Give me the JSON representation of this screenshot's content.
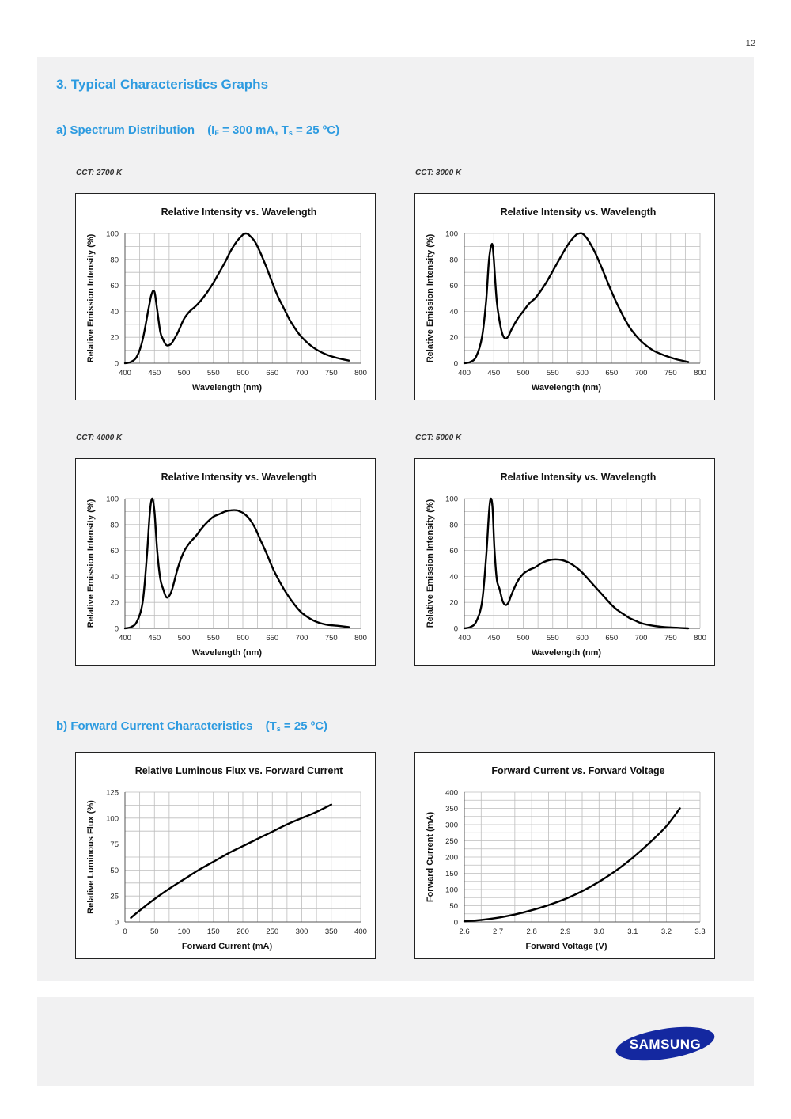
{
  "page_number": "12",
  "section": {
    "title": "3.  Typical Characteristics Graphs",
    "sub_a": {
      "label": "a)  Spectrum Distribution",
      "cond_a": "(I",
      "cond_a_sub": "F",
      "cond_b": " = 300 mA, T",
      "cond_b_sub": "s",
      "cond_c": " = 25 ºC)"
    },
    "sub_b": {
      "label": "b)  Forward Current Characteristics",
      "cond_a": "(T",
      "cond_a_sub": "s",
      "cond_b": " = 25 ºC)"
    }
  },
  "cct_labels": [
    "CCT: 2700 K",
    "CCT: 3000 K",
    "CCT: 4000 K",
    "CCT: 5000 K"
  ],
  "brand": {
    "logo_text": "SAMSUNG",
    "logo_color": "#1428a0"
  },
  "colors": {
    "accent": "#2d9be0",
    "grid": "#bdbdbd",
    "line": "#000000"
  },
  "chart_data": [
    {
      "type": "line",
      "title": "Relative Intensity vs. Wavelength",
      "xlabel": "Wavelength (nm)",
      "ylabel": "Relative Emission Intensity (%)",
      "xlim": [
        400,
        800
      ],
      "ylim": [
        0,
        100
      ],
      "xticks": [
        400,
        450,
        500,
        550,
        600,
        650,
        700,
        750,
        800
      ],
      "yticks": [
        0,
        20,
        40,
        60,
        80,
        100
      ],
      "x": [
        400,
        410,
        420,
        430,
        440,
        445,
        450,
        455,
        460,
        465,
        470,
        475,
        480,
        490,
        500,
        510,
        520,
        530,
        540,
        550,
        560,
        570,
        580,
        590,
        600,
        605,
        610,
        620,
        630,
        640,
        650,
        660,
        670,
        680,
        690,
        700,
        720,
        740,
        760,
        780
      ],
      "y": [
        0,
        1,
        5,
        18,
        42,
        53,
        55,
        40,
        24,
        18,
        14,
        14,
        16,
        24,
        34,
        40,
        44,
        49,
        55,
        62,
        70,
        78,
        87,
        94,
        99,
        100,
        99,
        94,
        85,
        74,
        62,
        51,
        42,
        33,
        26,
        20,
        12,
        7,
        4,
        2
      ]
    },
    {
      "type": "line",
      "title": "Relative Intensity vs. Wavelength",
      "xlabel": "Wavelength (nm)",
      "ylabel": "Relative Emission Intensity (%)",
      "xlim": [
        400,
        800
      ],
      "ylim": [
        0,
        100
      ],
      "xticks": [
        400,
        450,
        500,
        550,
        600,
        650,
        700,
        750,
        800
      ],
      "yticks": [
        0,
        20,
        40,
        60,
        80,
        100
      ],
      "x": [
        400,
        410,
        420,
        430,
        437,
        442,
        447,
        450,
        455,
        460,
        465,
        470,
        475,
        480,
        490,
        500,
        510,
        520,
        530,
        540,
        550,
        560,
        570,
        580,
        590,
        595,
        600,
        605,
        610,
        620,
        630,
        640,
        650,
        660,
        670,
        680,
        690,
        700,
        720,
        740,
        760,
        780
      ],
      "y": [
        0,
        1,
        5,
        20,
        48,
        80,
        92,
        80,
        48,
        32,
        22,
        19,
        21,
        26,
        34,
        40,
        46,
        50,
        56,
        63,
        71,
        79,
        87,
        94,
        99,
        100,
        100,
        98,
        95,
        87,
        77,
        66,
        55,
        45,
        36,
        28,
        22,
        17,
        10,
        6,
        3,
        1
      ]
    },
    {
      "type": "line",
      "title": "Relative Intensity vs. Wavelength",
      "xlabel": "Wavelength (nm)",
      "ylabel": "Relative Emission Intensity (%)",
      "xlim": [
        400,
        800
      ],
      "ylim": [
        0,
        100
      ],
      "xticks": [
        400,
        450,
        500,
        550,
        600,
        650,
        700,
        750,
        800
      ],
      "yticks": [
        0,
        20,
        40,
        60,
        80,
        100
      ],
      "x": [
        400,
        410,
        420,
        430,
        437,
        442,
        446,
        450,
        455,
        460,
        465,
        470,
        475,
        480,
        490,
        500,
        510,
        520,
        530,
        540,
        550,
        560,
        570,
        580,
        590,
        595,
        600,
        610,
        620,
        630,
        640,
        650,
        660,
        670,
        680,
        690,
        700,
        720,
        740,
        760,
        780
      ],
      "y": [
        0,
        1,
        5,
        20,
        55,
        88,
        100,
        90,
        58,
        38,
        30,
        24,
        25,
        30,
        47,
        59,
        66,
        71,
        77,
        82,
        86,
        88,
        90,
        91,
        91,
        90,
        89,
        85,
        78,
        68,
        58,
        47,
        38,
        30,
        23,
        17,
        12,
        6,
        3,
        2,
        1
      ]
    },
    {
      "type": "line",
      "title": "Relative Intensity vs. Wavelength",
      "xlabel": "Wavelength (nm)",
      "ylabel": "Relative Emission Intensity (%)",
      "xlim": [
        400,
        800
      ],
      "ylim": [
        0,
        100
      ],
      "xticks": [
        400,
        450,
        500,
        550,
        600,
        650,
        700,
        750,
        800
      ],
      "yticks": [
        0,
        20,
        40,
        60,
        80,
        100
      ],
      "x": [
        400,
        410,
        420,
        430,
        437,
        442,
        445,
        448,
        451,
        455,
        460,
        465,
        470,
        475,
        480,
        490,
        500,
        510,
        520,
        530,
        540,
        550,
        560,
        570,
        580,
        590,
        600,
        610,
        620,
        630,
        640,
        650,
        660,
        670,
        680,
        690,
        700,
        720,
        740,
        760,
        780
      ],
      "y": [
        0,
        1,
        5,
        20,
        55,
        90,
        100,
        92,
        62,
        38,
        30,
        21,
        18,
        20,
        26,
        36,
        42,
        45,
        47,
        50,
        52,
        53,
        53,
        52,
        50,
        47,
        43,
        38,
        33,
        28,
        23,
        18,
        14,
        11,
        8,
        6,
        4,
        2,
        1,
        0.5,
        0
      ]
    },
    {
      "type": "line",
      "title": "Relative Luminous Flux vs. Forward Current",
      "xlabel": "Forward Current (mA)",
      "ylabel": "Relative Luminous Flux (%)",
      "xlim": [
        0,
        400
      ],
      "ylim": [
        0,
        125
      ],
      "xticks": [
        0,
        50,
        100,
        150,
        200,
        250,
        300,
        350,
        400
      ],
      "yticks": [
        0,
        25,
        50,
        75,
        100,
        125
      ],
      "x": [
        10,
        25,
        50,
        75,
        100,
        125,
        150,
        175,
        200,
        225,
        250,
        275,
        300,
        325,
        350
      ],
      "y": [
        4,
        11,
        22,
        32,
        41,
        50,
        58,
        66,
        73,
        80,
        87,
        94,
        100,
        106,
        113
      ]
    },
    {
      "type": "line",
      "title": "Forward Current vs. Forward Voltage",
      "xlabel": "Forward Voltage (V)",
      "ylabel": "Forward Current (mA)",
      "xlim": [
        2.6,
        3.3
      ],
      "ylim": [
        0,
        400
      ],
      "xticks": [
        2.6,
        2.7,
        2.8,
        2.9,
        3.0,
        3.1,
        3.2,
        3.3
      ],
      "yticks": [
        0,
        50,
        100,
        150,
        200,
        250,
        300,
        350,
        400
      ],
      "xtick_labels": [
        "2.6",
        "2.7",
        "2.8",
        "2.9",
        "3.0",
        "3.1",
        "3.2",
        "3.3"
      ],
      "x": [
        2.6,
        2.65,
        2.7,
        2.75,
        2.8,
        2.85,
        2.9,
        2.95,
        3.0,
        3.05,
        3.1,
        3.15,
        3.2,
        3.24
      ],
      "y": [
        2,
        6,
        13,
        23,
        36,
        52,
        71,
        95,
        124,
        158,
        198,
        244,
        295,
        350
      ]
    }
  ]
}
